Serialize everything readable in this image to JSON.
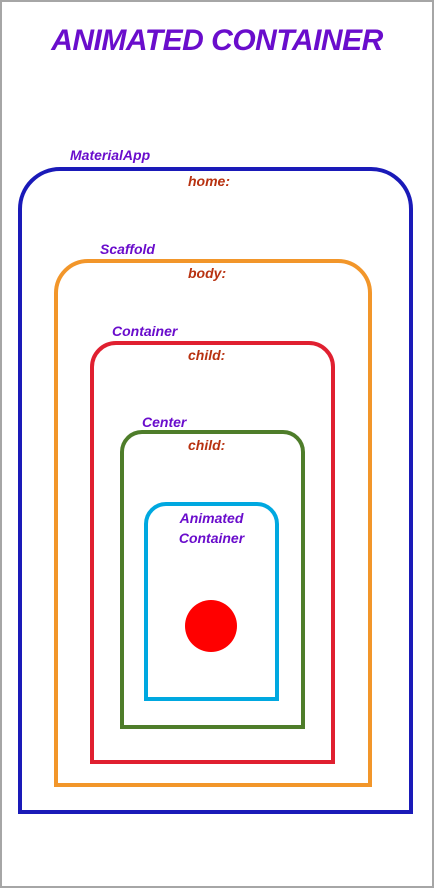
{
  "title": "ANIMATED CONTAINER",
  "widgets": [
    {
      "name": "MaterialApp",
      "property": "home:",
      "color": "#1a1ab8"
    },
    {
      "name": "Scaffold",
      "property": "body:",
      "color": "#f2962a"
    },
    {
      "name": "Container",
      "property": "child:",
      "color": "#e02030"
    },
    {
      "name": "Center",
      "property": "child:",
      "color": "#4e7d2a"
    },
    {
      "name_line1": "Animated",
      "name_line2": "Container",
      "color": "#00a8e0"
    }
  ],
  "ball": {
    "color": "#ff0000"
  }
}
